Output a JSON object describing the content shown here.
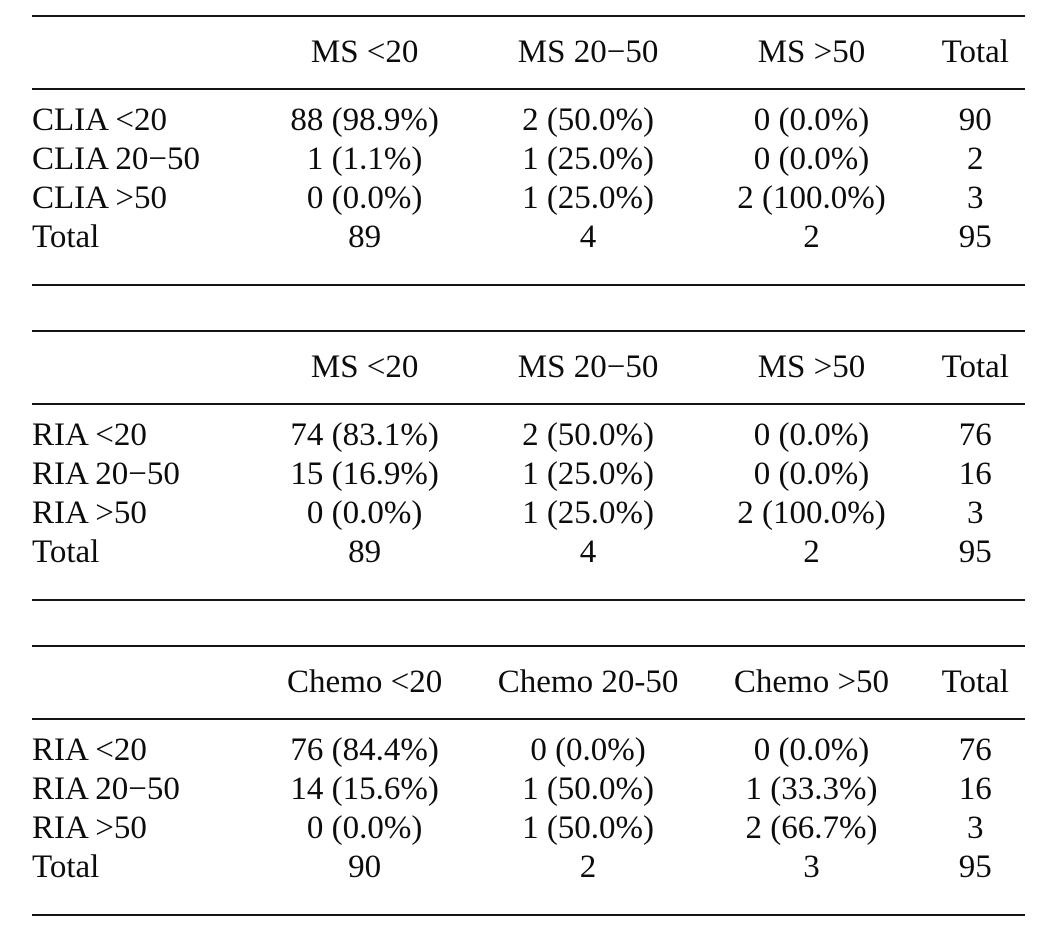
{
  "page": {
    "background": "#ffffff",
    "text_color": "#0c0c0c",
    "rule_color": "#141414"
  },
  "tables": [
    {
      "name": "table-clia-vs-ms",
      "columns": [
        "",
        "MS <20",
        "MS 20−50",
        "MS >50",
        "Total"
      ],
      "rows": [
        {
          "label": "CLIA <20",
          "cells": [
            "88 (98.9%)",
            "2 (50.0%)",
            "0 (0.0%)",
            "90"
          ]
        },
        {
          "label": "CLIA 20−50",
          "cells": [
            "1 (1.1%)",
            "1 (25.0%)",
            "0 (0.0%)",
            "2"
          ]
        },
        {
          "label": "CLIA >50",
          "cells": [
            "0 (0.0%)",
            "1 (25.0%)",
            "2 (100.0%)",
            "3"
          ]
        },
        {
          "label": "Total",
          "cells": [
            "89",
            "4",
            "2",
            "95"
          ]
        }
      ]
    },
    {
      "name": "table-ria-vs-ms",
      "columns": [
        "",
        "MS <20",
        "MS 20−50",
        "MS >50",
        "Total"
      ],
      "rows": [
        {
          "label": "RIA <20",
          "cells": [
            "74 (83.1%)",
            "2 (50.0%)",
            "0 (0.0%)",
            "76"
          ]
        },
        {
          "label": "RIA 20−50",
          "cells": [
            "15 (16.9%)",
            "1 (25.0%)",
            "0 (0.0%)",
            "16"
          ]
        },
        {
          "label": "RIA >50",
          "cells": [
            "0 (0.0%)",
            "1 (25.0%)",
            "2 (100.0%)",
            "3"
          ]
        },
        {
          "label": "Total",
          "cells": [
            "89",
            "4",
            "2",
            "95"
          ]
        }
      ]
    },
    {
      "name": "table-ria-vs-chemo",
      "columns": [
        "",
        "Chemo <20",
        "Chemo 20-50",
        "Chemo >50",
        "Total"
      ],
      "rows": [
        {
          "label": "RIA <20",
          "cells": [
            "76 (84.4%)",
            "0 (0.0%)",
            "0 (0.0%)",
            "76"
          ]
        },
        {
          "label": "RIA 20−50",
          "cells": [
            "14 (15.6%)",
            "1 (50.0%)",
            "1 (33.3%)",
            "16"
          ]
        },
        {
          "label": "RIA >50",
          "cells": [
            "0 (0.0%)",
            "1 (50.0%)",
            "2 (66.7%)",
            "3"
          ]
        },
        {
          "label": "Total",
          "cells": [
            "90",
            "2",
            "3",
            "95"
          ]
        }
      ]
    }
  ]
}
